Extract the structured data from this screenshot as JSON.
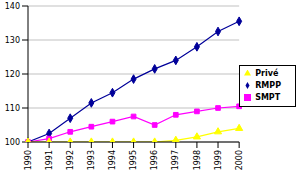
{
  "chart_data": {
    "type": "line",
    "categories": [
      "1990",
      "1991",
      "1992",
      "1993",
      "1994",
      "1995",
      "1996",
      "1997",
      "1998",
      "1999",
      "2000"
    ],
    "series": [
      {
        "name": "RMPP",
        "color": "#000099",
        "marker": "diamond",
        "values": [
          100,
          102.5,
          107,
          111.5,
          114.5,
          118.5,
          121.5,
          124,
          128,
          132.5,
          135.5
        ]
      },
      {
        "name": "SMPT",
        "color": "#ff00ff",
        "marker": "square",
        "values": [
          100,
          101,
          103,
          104.5,
          106,
          107.5,
          105,
          108,
          109,
          110,
          110.5
        ]
      },
      {
        "name": "Privé",
        "color": "#ffff00",
        "marker": "triangle",
        "values": [
          100,
          100,
          100,
          100,
          100,
          100,
          100,
          100.5,
          101.5,
          103,
          104
        ]
      }
    ],
    "ylim": [
      100,
      140
    ],
    "yticks": [
      100,
      110,
      120,
      130,
      140
    ],
    "grid": true,
    "legend": "right"
  }
}
